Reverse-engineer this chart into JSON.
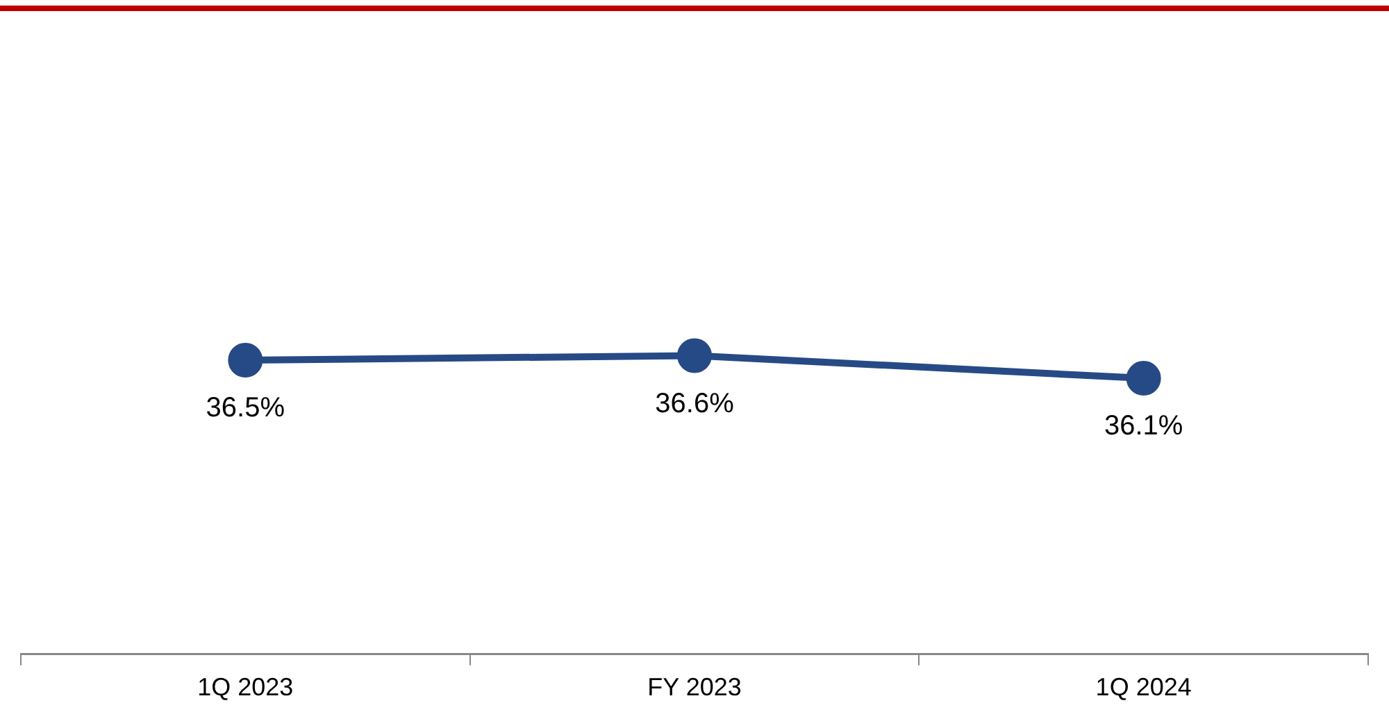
{
  "chart_data": {
    "type": "line",
    "categories": [
      "1Q 2023",
      "FY 2023",
      "1Q 2024"
    ],
    "series": [
      {
        "color": "#264a85",
        "values": [
          36.5,
          36.6,
          36.1
        ],
        "value_labels": [
          "36.5%",
          "36.6%",
          "36.1%"
        ]
      }
    ],
    "tick_labels": "x",
    "grid": false,
    "legend": false,
    "marker": "circle",
    "line_style": "solid"
  }
}
